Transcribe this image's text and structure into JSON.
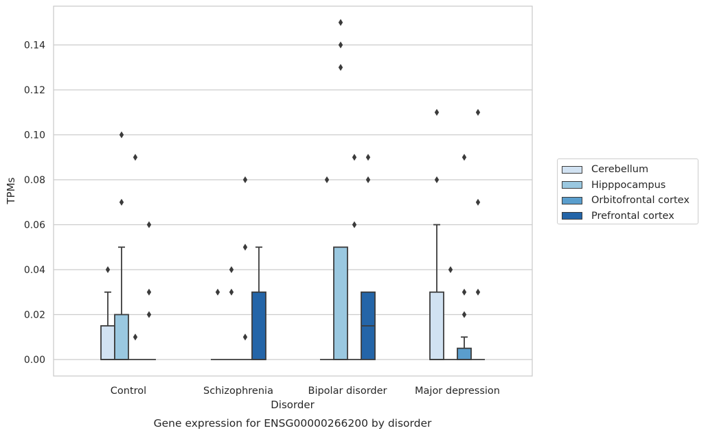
{
  "chart_data": {
    "type": "box",
    "title": "Gene expression for ENSG00000266200 by disorder",
    "xlabel": "Disorder",
    "ylabel": "TPMs",
    "ylim": [
      -0.0073,
      0.157
    ],
    "yticks": [
      "0.00",
      "0.02",
      "0.04",
      "0.06",
      "0.08",
      "0.10",
      "0.12",
      "0.14"
    ],
    "categories": [
      "Control",
      "Schizophrenia",
      "Bipolar disorder",
      "Major depression"
    ],
    "grid": "horizontal",
    "legend_placement": "right",
    "series": [
      {
        "name": "Cerebellum",
        "color": "#d1e2f2",
        "boxes": [
          {
            "q1": 0.0,
            "median": 0.0,
            "q3": 0.015,
            "whisker_low": 0.0,
            "whisker_high": 0.03,
            "outliers": [
              0.04
            ]
          },
          {
            "q1": 0.0,
            "median": 0.0,
            "q3": 0.0,
            "whisker_low": 0.0,
            "whisker_high": 0.0,
            "outliers": [
              0.03
            ]
          },
          {
            "q1": 0.0,
            "median": 0.0,
            "q3": 0.0,
            "whisker_low": 0.0,
            "whisker_high": 0.0,
            "outliers": [
              0.08
            ]
          },
          {
            "q1": 0.0,
            "median": 0.0,
            "q3": 0.03,
            "whisker_low": 0.0,
            "whisker_high": 0.06,
            "outliers": [
              0.08,
              0.11
            ]
          }
        ]
      },
      {
        "name": "Hipppocampus",
        "color": "#9ac8e0",
        "boxes": [
          {
            "q1": 0.0,
            "median": 0.0,
            "q3": 0.02,
            "whisker_low": 0.0,
            "whisker_high": 0.05,
            "outliers": [
              0.07,
              0.1
            ]
          },
          {
            "q1": 0.0,
            "median": 0.0,
            "q3": 0.0,
            "whisker_low": 0.0,
            "whisker_high": 0.0,
            "outliers": [
              0.03,
              0.04
            ]
          },
          {
            "q1": 0.0,
            "median": 0.0,
            "q3": 0.05,
            "whisker_low": 0.0,
            "whisker_high": 0.05,
            "outliers": [
              0.13,
              0.14,
              0.15
            ]
          },
          {
            "q1": 0.0,
            "median": 0.0,
            "q3": 0.0,
            "whisker_low": 0.0,
            "whisker_high": 0.0,
            "outliers": [
              0.04
            ]
          }
        ]
      },
      {
        "name": "Orbitofrontal cortex",
        "color": "#5a9ecd",
        "boxes": [
          {
            "q1": 0.0,
            "median": 0.0,
            "q3": 0.0,
            "whisker_low": 0.0,
            "whisker_high": 0.0,
            "outliers": [
              0.01,
              0.09
            ]
          },
          {
            "q1": 0.0,
            "median": 0.0,
            "q3": 0.0,
            "whisker_low": 0.0,
            "whisker_high": 0.0,
            "outliers": [
              0.01,
              0.05,
              0.08
            ]
          },
          {
            "q1": 0.0,
            "median": 0.0,
            "q3": 0.0,
            "whisker_low": 0.0,
            "whisker_high": 0.0,
            "outliers": [
              0.06,
              0.09
            ]
          },
          {
            "q1": 0.0,
            "median": 0.0,
            "q3": 0.005,
            "whisker_low": 0.0,
            "whisker_high": 0.01,
            "outliers": [
              0.02,
              0.03,
              0.09
            ]
          }
        ]
      },
      {
        "name": "Prefrontal cortex",
        "color": "#2465a8",
        "boxes": [
          {
            "q1": 0.0,
            "median": 0.0,
            "q3": 0.0,
            "whisker_low": 0.0,
            "whisker_high": 0.0,
            "outliers": [
              0.02,
              0.03,
              0.06
            ]
          },
          {
            "q1": 0.0,
            "median": 0.0,
            "q3": 0.03,
            "whisker_low": 0.0,
            "whisker_high": 0.05,
            "outliers": []
          },
          {
            "q1": 0.0,
            "median": 0.015,
            "q3": 0.03,
            "whisker_low": 0.0,
            "whisker_high": 0.03,
            "outliers": [
              0.08,
              0.09
            ]
          },
          {
            "q1": 0.0,
            "median": 0.0,
            "q3": 0.0,
            "whisker_low": 0.0,
            "whisker_high": 0.0,
            "outliers": [
              0.03,
              0.07,
              0.11
            ]
          }
        ]
      }
    ]
  }
}
